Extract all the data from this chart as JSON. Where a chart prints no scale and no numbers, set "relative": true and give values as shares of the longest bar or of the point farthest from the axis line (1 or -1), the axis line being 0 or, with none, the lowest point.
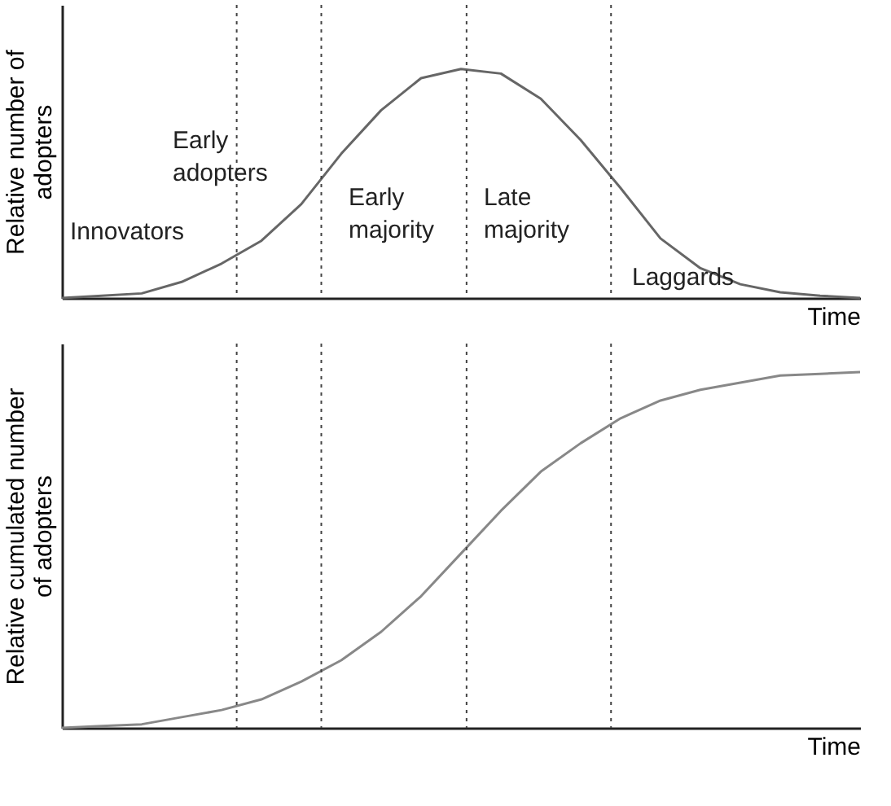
{
  "chart_data": [
    {
      "type": "line",
      "relative": true,
      "ylabel": "Relative number of adopters",
      "xlabel": "Time",
      "categories": [
        null,
        null,
        null,
        null,
        null,
        null,
        null,
        null,
        null,
        null,
        null,
        null,
        null,
        null,
        null,
        null,
        null,
        null,
        null,
        null,
        null
      ],
      "series": [
        {
          "color": "#666666",
          "values": [
            0,
            0.01,
            0.02,
            0.07,
            0.15,
            0.25,
            0.41,
            0.63,
            0.82,
            0.96,
            1,
            0.98,
            0.87,
            0.69,
            0.48,
            0.26,
            0.13,
            0.06,
            0.025,
            0.01,
            0
          ]
        }
      ],
      "annotations": [
        "Innovators",
        "Early adopters",
        "Early majority",
        "Late majority",
        "Laggards"
      ]
    },
    {
      "type": "line",
      "relative": true,
      "ylabel": "Relative cumulated number of adopters",
      "xlabel": "Time",
      "categories": [
        null,
        null,
        null,
        null,
        null,
        null,
        null,
        null,
        null,
        null,
        null,
        null,
        null,
        null,
        null,
        null,
        null,
        null,
        null,
        null,
        null
      ],
      "series": [
        {
          "color": "#888888",
          "values": [
            0,
            0.005,
            0.01,
            0.03,
            0.05,
            0.08,
            0.13,
            0.19,
            0.27,
            0.37,
            0.49,
            0.61,
            0.72,
            0.8,
            0.87,
            0.92,
            0.95,
            0.97,
            0.99,
            0.995,
            1
          ]
        }
      ]
    }
  ]
}
